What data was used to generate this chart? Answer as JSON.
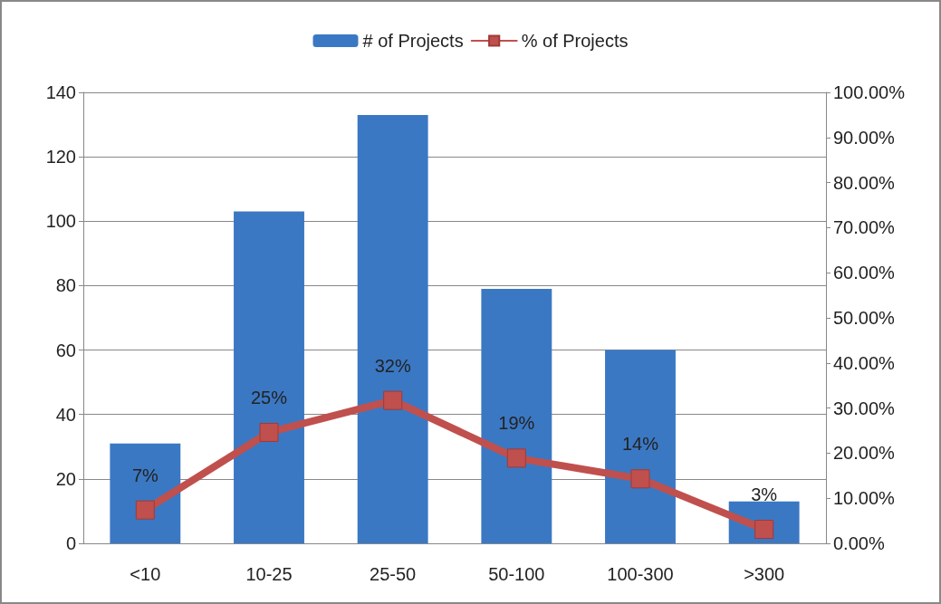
{
  "chart_data": {
    "type": "bar",
    "categories": [
      "<10",
      "10-25",
      "25-50",
      "50-100",
      "100-300",
      ">300"
    ],
    "series": [
      {
        "name": "# of Projects",
        "color": "#3b78c3",
        "values": [
          31,
          103,
          133,
          79,
          60,
          13
        ]
      },
      {
        "name": "% of Projects",
        "type": "line",
        "axis": "y2",
        "color": "#c0504d",
        "values": [
          7.4,
          24.6,
          31.7,
          18.9,
          14.3,
          3.1
        ],
        "value_labels": [
          "7%",
          "25%",
          "32%",
          "19%",
          "14%",
          "3%"
        ]
      }
    ],
    "ylim": [
      0,
      140
    ],
    "yticks": [
      0,
      20,
      40,
      60,
      80,
      100,
      120,
      140
    ],
    "y2lim": [
      0,
      100
    ],
    "y2ticks": [
      {
        "value": 0,
        "label": "0.00%"
      },
      {
        "value": 10,
        "label": "10.00%"
      },
      {
        "value": 20,
        "label": "20.00%"
      },
      {
        "value": 30,
        "label": "30.00%"
      },
      {
        "value": 40,
        "label": "40.00%"
      },
      {
        "value": 50,
        "label": "50.00%"
      },
      {
        "value": 60,
        "label": "60.00%"
      },
      {
        "value": 70,
        "label": "70.00%"
      },
      {
        "value": 80,
        "label": "80.00%"
      },
      {
        "value": 90,
        "label": "90.00%"
      },
      {
        "value": 100,
        "label": "100.00%"
      }
    ],
    "grid": "y",
    "legend": "top",
    "marker": "square",
    "line_style": "solid"
  }
}
